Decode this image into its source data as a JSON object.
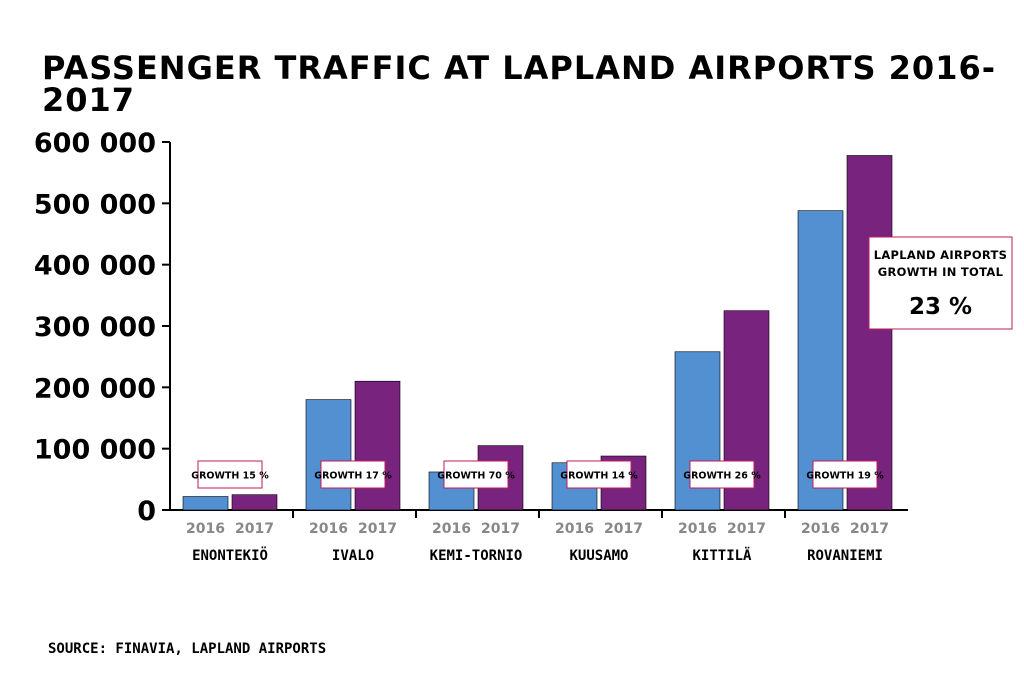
{
  "chart_data": {
    "type": "bar",
    "title": "PASSENGER TRAFFIC AT LAPLAND AIRPORTS 2016-2017",
    "categories": [
      "ENONTEKIÖ",
      "IVALO",
      "KEMI-TORNIO",
      "KUUSAMO",
      "KITTILÄ",
      "ROVANIEMI"
    ],
    "series": [
      {
        "name": "2016",
        "values": [
          22000,
          180000,
          62000,
          77000,
          258000,
          488000
        ]
      },
      {
        "name": "2017",
        "values": [
          25000,
          210000,
          105000,
          88000,
          325000,
          578000
        ]
      }
    ],
    "year_labels": [
      "2016",
      "2017"
    ],
    "growth_labels": [
      "GROWTH 15 %",
      "GROWTH 17 %",
      "GROWTH 70 %",
      "GROWTH 14 %",
      "GROWTH 26 %",
      "GROWTH 19 %"
    ],
    "yticks": [
      0,
      100000,
      200000,
      300000,
      400000,
      500000,
      600000
    ],
    "ytick_labels": [
      "0",
      "100 000",
      "200 000",
      "300 000",
      "400 000",
      "500 000",
      "600 000"
    ],
    "ylim": [
      0,
      600000
    ],
    "total_growth": {
      "label_line1": "LAPLAND AIRPORTS",
      "label_line2": "GROWTH IN TOTAL",
      "value": "23 %"
    },
    "grid": false,
    "legend": "none",
    "source": "SOURCE: FINAVIA, LAPLAND AIRPORTS",
    "colors": {
      "2016": "#5390d1",
      "2017": "#78237e",
      "label_border": "#c2185b",
      "axis": "#000000"
    }
  }
}
